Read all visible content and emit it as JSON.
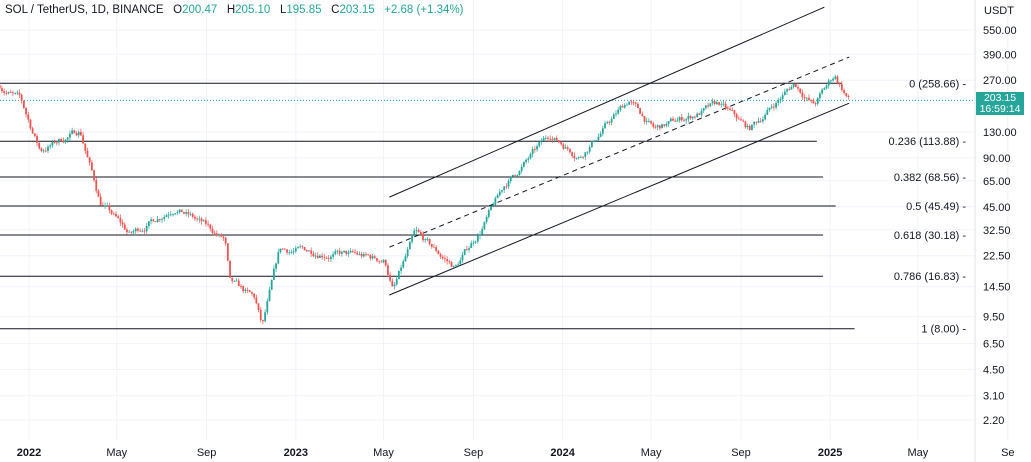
{
  "header": {
    "symbol": "SOL / TetherUS, 1D, BINANCE",
    "o_label": "O",
    "o": "200.47",
    "h_label": "H",
    "h": "205.10",
    "l_label": "L",
    "l": "195.85",
    "c_label": "C",
    "c": "203.15",
    "change": "+2.68 (+1.34%)"
  },
  "price_axis": {
    "currency": "USDT",
    "last_price": "203.15",
    "countdown": "16:59:14"
  },
  "colors": {
    "up": "#26a69a",
    "down": "#ef5350",
    "line": "#131722",
    "grid": "#f0f3fa",
    "last": "#26a69a"
  },
  "chart_data": {
    "type": "candlestick",
    "title": "SOL / TetherUS, 1D, BINANCE",
    "yscale": "log",
    "ylim": [
      1.8,
      800
    ],
    "xlim": [
      "2021-11-22",
      "2025-10-05"
    ],
    "y_ticks": [
      "550.00",
      "390.00",
      "270.00",
      "130.00",
      "90.00",
      "65.00",
      "45.00",
      "32.50",
      "22.50",
      "14.50",
      "9.50",
      "6.50",
      "4.50",
      "3.10",
      "2.20"
    ],
    "x_ticks": [
      {
        "label": "2022",
        "date": "2022-01-01",
        "bold": true
      },
      {
        "label": "May",
        "date": "2022-05-01"
      },
      {
        "label": "Sep",
        "date": "2022-09-01"
      },
      {
        "label": "2023",
        "date": "2023-01-01",
        "bold": true
      },
      {
        "label": "May",
        "date": "2023-05-01"
      },
      {
        "label": "Sep",
        "date": "2023-09-01"
      },
      {
        "label": "2024",
        "date": "2024-01-01",
        "bold": true
      },
      {
        "label": "May",
        "date": "2024-05-01"
      },
      {
        "label": "Sep",
        "date": "2024-09-01"
      },
      {
        "label": "2025",
        "date": "2025-01-01",
        "bold": true
      },
      {
        "label": "May",
        "date": "2025-05-01"
      },
      {
        "label": "Se",
        "date": "2025-09-01"
      }
    ],
    "price_path": [
      [
        "2021-11-22",
        252
      ],
      [
        "2021-12-20",
        204
      ],
      [
        "2022-01-16",
        100
      ],
      [
        "2022-03-12",
        133
      ],
      [
        "2022-04-08",
        49
      ],
      [
        "2022-05-19",
        30
      ],
      [
        "2022-07-20",
        46
      ],
      [
        "2022-09-12",
        31
      ],
      [
        "2022-09-26",
        28
      ],
      [
        "2022-10-03",
        15
      ],
      [
        "2022-11-06",
        12
      ],
      [
        "2022-11-16",
        8.0
      ],
      [
        "2022-12-10",
        24
      ],
      [
        "2023-02-03",
        24
      ],
      [
        "2023-05-03",
        21
      ],
      [
        "2023-05-14",
        13.8
      ],
      [
        "2023-06-13",
        30
      ],
      [
        "2023-08-07",
        19
      ],
      [
        "2023-09-10",
        32
      ],
      [
        "2023-10-14",
        61
      ],
      [
        "2023-12-15",
        124
      ],
      [
        "2024-01-24",
        93.5
      ],
      [
        "2024-04-01",
        204
      ],
      [
        "2024-05-05",
        133
      ],
      [
        "2024-08-02",
        190
      ],
      [
        "2024-09-12",
        133
      ],
      [
        "2024-11-13",
        259
      ],
      [
        "2024-12-10",
        190
      ],
      [
        "2025-01-07",
        290
      ],
      [
        "2025-01-27",
        203.15
      ]
    ],
    "fib_levels": [
      {
        "label": "0 (258.66)",
        "price": 258.66
      },
      {
        "label": "0.236 (113.88)",
        "price": 113.88
      },
      {
        "label": "0.382 (68.56)",
        "price": 68.56
      },
      {
        "label": "0.5 (45.49)",
        "price": 45.49
      },
      {
        "label": "0.618 (30.18)",
        "price": 30.18
      },
      {
        "label": "0.786 (16.83)",
        "price": 16.83
      },
      {
        "label": "1 (8.00)",
        "price": 8.0
      }
    ],
    "channel": {
      "upper": [
        [
          "2023-05-09",
          51.6
        ],
        [
          "2024-12-24",
          760
        ]
      ],
      "middle": [
        [
          "2023-05-09",
          25.4
        ],
        [
          "2025-01-27",
          375
        ]
      ],
      "lower": [
        [
          "2023-05-09",
          12.9
        ],
        [
          "2025-01-27",
          195
        ]
      ]
    },
    "last_price": 203.15
  }
}
